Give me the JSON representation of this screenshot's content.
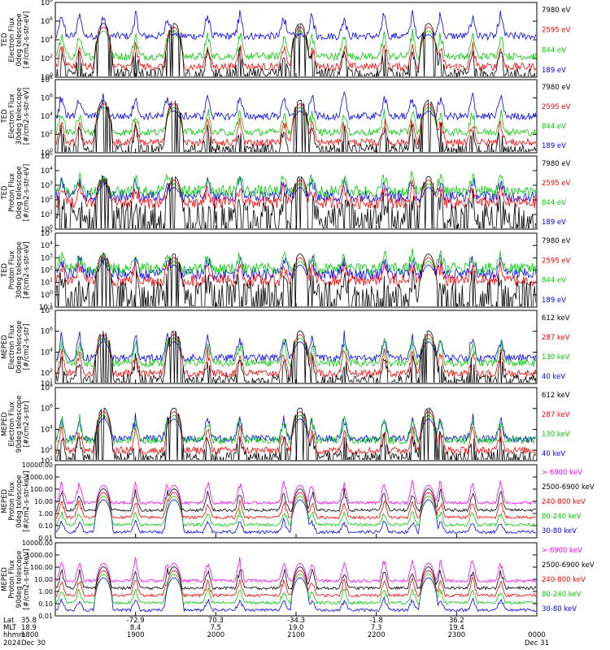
{
  "chart_data": [
    {
      "type": "line",
      "ylabel": [
        "TED",
        "Electron Flux",
        "0deg telescope",
        "[#/cm2-s-str-eV]"
      ],
      "yscale": "log",
      "ylim": [
        1.0,
        100000000.0
      ],
      "yticks": [
        {
          "e": 0,
          "label": "0"
        },
        {
          "e": 2,
          "label": "2"
        },
        {
          "e": 4,
          "label": "4"
        },
        {
          "e": 6,
          "label": "6"
        },
        {
          "e": 8,
          "label": "8"
        }
      ],
      "series": [
        {
          "name": "7980 eV",
          "color": "#000000"
        },
        {
          "name": "2595 eV",
          "color": "#ff0000"
        },
        {
          "name": "844 eV",
          "color": "#00cc00"
        },
        {
          "name": "189 eV",
          "color": "#0000ff"
        }
      ]
    },
    {
      "type": "line",
      "ylabel": [
        "TED",
        "Electron Flux",
        "30deg telescope",
        "[#/cm2-s-str-eV]"
      ],
      "yscale": "log",
      "ylim": [
        1.0,
        100000000.0
      ],
      "yticks": [
        {
          "e": 0,
          "label": "0"
        },
        {
          "e": 2,
          "label": "2"
        },
        {
          "e": 4,
          "label": "4"
        },
        {
          "e": 6,
          "label": "6"
        },
        {
          "e": 8,
          "label": "8"
        }
      ],
      "series": [
        {
          "name": "7980 eV",
          "color": "#000000"
        },
        {
          "name": "2595 eV",
          "color": "#ff0000"
        },
        {
          "name": "844 eV",
          "color": "#00cc00"
        },
        {
          "name": "189 eV",
          "color": "#0000ff"
        }
      ]
    },
    {
      "type": "line",
      "ylabel": [
        "TED",
        "Proton Flux",
        "0deg telescope",
        "[#/cm2-s-str-eV]"
      ],
      "yscale": "log",
      "ylim": [
        1.0,
        100000.0
      ],
      "yticks": [
        {
          "e": 0,
          "label": "0"
        },
        {
          "e": 1,
          "label": "1"
        },
        {
          "e": 2,
          "label": "2"
        },
        {
          "e": 3,
          "label": "3"
        },
        {
          "e": 4,
          "label": "4"
        },
        {
          "e": 5,
          "label": "5"
        }
      ],
      "series": [
        {
          "name": "7980 eV",
          "color": "#000000"
        },
        {
          "name": "2595 eV",
          "color": "#ff0000"
        },
        {
          "name": "844 eV",
          "color": "#00cc00"
        },
        {
          "name": "189 eV",
          "color": "#0000ff"
        }
      ]
    },
    {
      "type": "line",
      "ylabel": [
        "TED",
        "Proton Flux",
        "30deg telescope",
        "[#/cm2-s-str-eV]"
      ],
      "yscale": "log",
      "ylim": [
        0.1,
        100000.0
      ],
      "yticks": [
        {
          "e": -1,
          "label": "-1"
        },
        {
          "e": 0,
          "label": "0"
        },
        {
          "e": 1,
          "label": "1"
        },
        {
          "e": 2,
          "label": "2"
        },
        {
          "e": 3,
          "label": "3"
        },
        {
          "e": 4,
          "label": "4"
        },
        {
          "e": 5,
          "label": "5"
        }
      ],
      "series": [
        {
          "name": "7980 eV",
          "color": "#000000"
        },
        {
          "name": "2595 eV",
          "color": "#ff0000"
        },
        {
          "name": "844 eV",
          "color": "#00cc00"
        },
        {
          "name": "189 eV",
          "color": "#0000ff"
        }
      ]
    },
    {
      "type": "line",
      "ylabel": [
        "MEPED",
        "Electron Flux",
        "0deg telescope",
        "[#/cm2-s-str]"
      ],
      "yscale": "log",
      "ylim": [
        10.0,
        100000000.0
      ],
      "yticks": [
        {
          "e": 1,
          "label": "1"
        },
        {
          "e": 2,
          "label": "2"
        },
        {
          "e": 4,
          "label": "4"
        },
        {
          "e": 6,
          "label": "6"
        },
        {
          "e": 8,
          "label": "8"
        }
      ],
      "series": [
        {
          "name": "612 keV",
          "color": "#000000"
        },
        {
          "name": "287 keV",
          "color": "#ff0000"
        },
        {
          "name": "130 keV",
          "color": "#00cc00"
        },
        {
          "name": "40 keV",
          "color": "#0000ff"
        }
      ]
    },
    {
      "type": "line",
      "ylabel": [
        "MEPED",
        "Electron Flux",
        "90deg telescope",
        "[#/cm2-s-str]"
      ],
      "yscale": "log",
      "ylim": [
        10.0,
        100000000.0
      ],
      "yticks": [
        {
          "e": 1,
          "label": "1"
        },
        {
          "e": 2,
          "label": "2"
        },
        {
          "e": 4,
          "label": "4"
        },
        {
          "e": 6,
          "label": "6"
        },
        {
          "e": 8,
          "label": "8"
        }
      ],
      "series": [
        {
          "name": "612 keV",
          "color": "#000000"
        },
        {
          "name": "287 keV",
          "color": "#ff0000"
        },
        {
          "name": "130 keV",
          "color": "#00cc00"
        },
        {
          "name": "40 keV",
          "color": "#0000ff"
        }
      ]
    },
    {
      "type": "line",
      "ylabel": [
        "MEPED",
        "Proton Flux",
        "0deg telescope",
        "[#/cm2-s-str-keV]"
      ],
      "yscale": "log",
      "ylim": [
        0.01,
        10000
      ],
      "yticks": [
        {
          "e": -2,
          "label": "0.01"
        },
        {
          "e": -1,
          "label": "0.10"
        },
        {
          "e": 0,
          "label": "1.00"
        },
        {
          "e": 1,
          "label": "10.00"
        },
        {
          "e": 2,
          "label": "100.00"
        },
        {
          "e": 3,
          "label": "1000.00"
        },
        {
          "e": 4,
          "label": "10000.00"
        }
      ],
      "series": [
        {
          "name": "> 6900 keV",
          "color": "#ff00ff"
        },
        {
          "name": "2500-6900 keV",
          "color": "#000000"
        },
        {
          "name": "240-800 keV",
          "color": "#ff0000"
        },
        {
          "name": "80-240 keV",
          "color": "#00cc00"
        },
        {
          "name": "30-80 keV",
          "color": "#0000ff"
        }
      ]
    },
    {
      "type": "line",
      "ylabel": [
        "MEPED",
        "Proton Flux",
        "90deg telescope",
        "[#/cm2-s-str-keV]"
      ],
      "yscale": "log",
      "ylim": [
        0.01,
        10000
      ],
      "yticks": [
        {
          "e": -2,
          "label": "0.01"
        },
        {
          "e": -1,
          "label": "0.10"
        },
        {
          "e": 0,
          "label": "1.00"
        },
        {
          "e": 1,
          "label": "10.00"
        },
        {
          "e": 2,
          "label": "100.00"
        },
        {
          "e": 3,
          "label": "1000.00"
        },
        {
          "e": 4,
          "label": "10000.00"
        }
      ],
      "series": [
        {
          "name": "> 6900 keV",
          "color": "#ff00ff"
        },
        {
          "name": "2500-6900 keV",
          "color": "#000000"
        },
        {
          "name": "240-800 keV",
          "color": "#ff0000"
        },
        {
          "name": "80-240 keV",
          "color": "#00cc00"
        },
        {
          "name": "30-80 keV",
          "color": "#0000ff"
        }
      ]
    }
  ],
  "x_axis": {
    "row_labels": [
      "Lat",
      "MLT",
      "hhmm",
      "2024"
    ],
    "ticks": [
      {
        "hours": 0,
        "lat": "35.8",
        "mlt": "18.9",
        "hhmm": "1800",
        "date": "Dec 30"
      },
      {
        "hours": 1,
        "lat": "-72.9",
        "mlt": "8.4",
        "hhmm": "1900",
        "date": ""
      },
      {
        "hours": 2,
        "lat": "70.3",
        "mlt": "7.5",
        "hhmm": "2000",
        "date": ""
      },
      {
        "hours": 3,
        "lat": "-34.3",
        "mlt": "19.0",
        "hhmm": "2100",
        "date": ""
      },
      {
        "hours": 4,
        "lat": "-1.8",
        "mlt": "7.3",
        "hhmm": "2200",
        "date": ""
      },
      {
        "hours": 5,
        "lat": "36.2",
        "mlt": "19.4",
        "hhmm": "2300",
        "date": ""
      },
      {
        "hours": 6,
        "lat": "",
        "mlt": "",
        "hhmm": "0000",
        "date": "Dec 31"
      }
    ]
  }
}
